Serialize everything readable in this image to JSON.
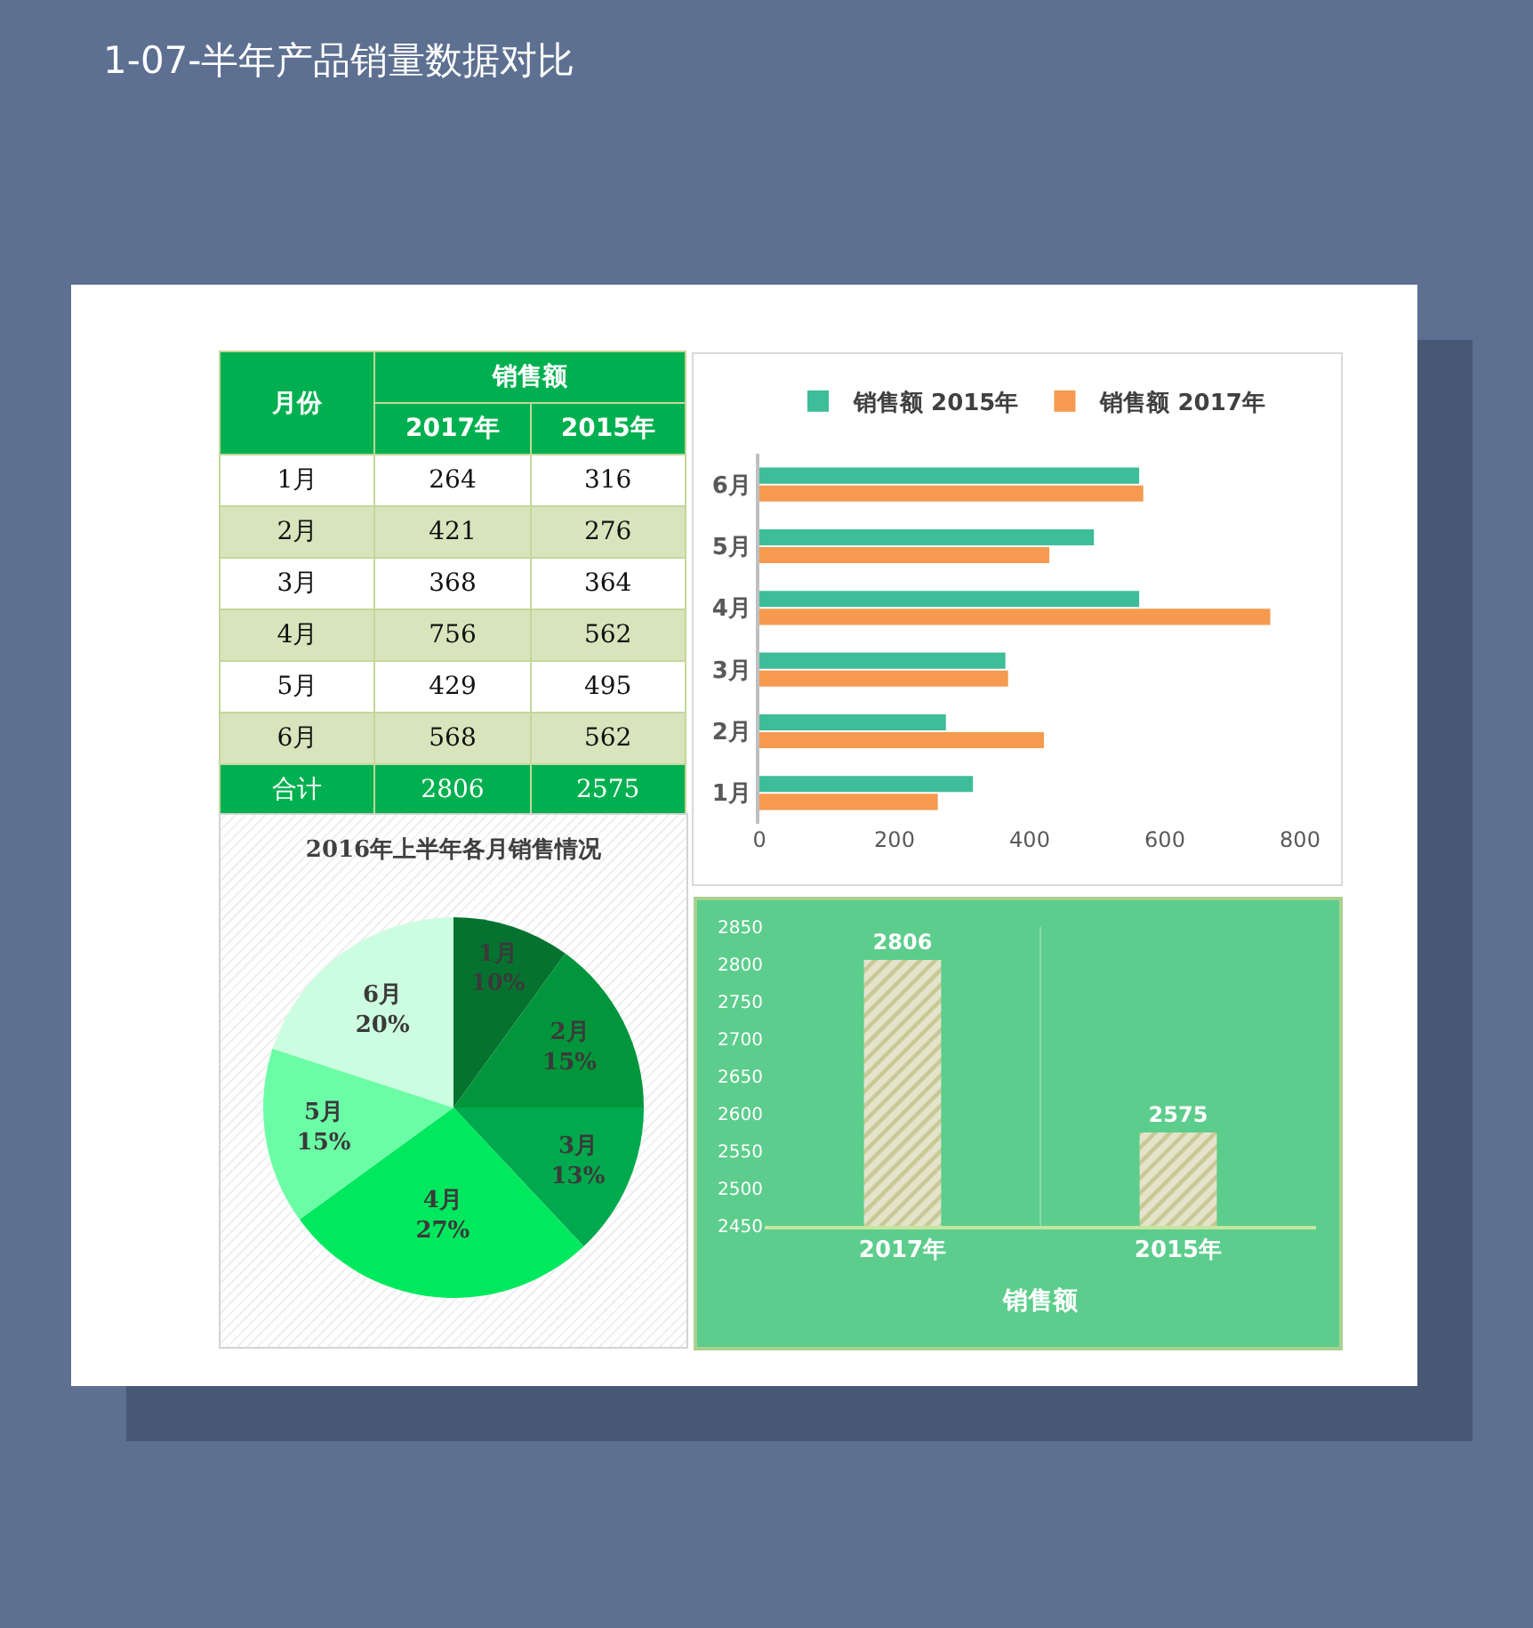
{
  "chart_data": [
    {
      "type": "heatmap",
      "title": "1-07-半年产品销量数据对比",
      "ylabel": "月份",
      "xlabel": "销售额",
      "categories": [
        "2017年",
        "2015年"
      ],
      "y_categories": [
        "1月",
        "2月",
        "3月",
        "4月",
        "5月",
        "6月",
        "合计"
      ],
      "cells": [
        [
          264,
          316
        ],
        [
          421,
          276
        ],
        [
          368,
          364
        ],
        [
          756,
          562
        ],
        [
          429,
          495
        ],
        [
          568,
          562
        ],
        [
          2806,
          2575
        ]
      ],
      "data_labels": true
    },
    {
      "type": "bar",
      "orientation": "horizontal",
      "categories": [
        "6月",
        "5月",
        "4月",
        "3月",
        "2月",
        "1月"
      ],
      "series": [
        {
          "name": "销售额 2015年",
          "color": "#3dbd98",
          "values": [
            562,
            495,
            562,
            364,
            276,
            316
          ]
        },
        {
          "name": "销售额 2017年",
          "color": "#f59a4e",
          "values": [
            568,
            429,
            756,
            368,
            421,
            264
          ]
        }
      ],
      "xlim": [
        0,
        800
      ],
      "xticks": [
        0,
        200,
        400,
        600,
        800
      ],
      "legend": "top"
    },
    {
      "type": "pie",
      "title": "2016年上半年各月销售情况",
      "categories": [
        "1月",
        "2月",
        "3月",
        "4月",
        "5月",
        "6月"
      ],
      "values": [
        10,
        15,
        13,
        27,
        15,
        20
      ],
      "value_labels": [
        "10%",
        "15%",
        "13%",
        "27%",
        "15%",
        "20%"
      ],
      "colors": [
        "#05732f",
        "#01963b",
        "#00a94d",
        "#00e85e",
        "#6bfda6",
        "#cdfde0"
      ]
    },
    {
      "type": "bar",
      "categories": [
        "2017年",
        "2015年"
      ],
      "values": [
        2806,
        2575
      ],
      "color": "#c8c896",
      "ylim": [
        2450,
        2850
      ],
      "yticks": [
        2450,
        2500,
        2550,
        2600,
        2650,
        2700,
        2750,
        2800,
        2850
      ],
      "xlabel": "销售额",
      "data_labels": true,
      "grid": "x"
    }
  ]
}
